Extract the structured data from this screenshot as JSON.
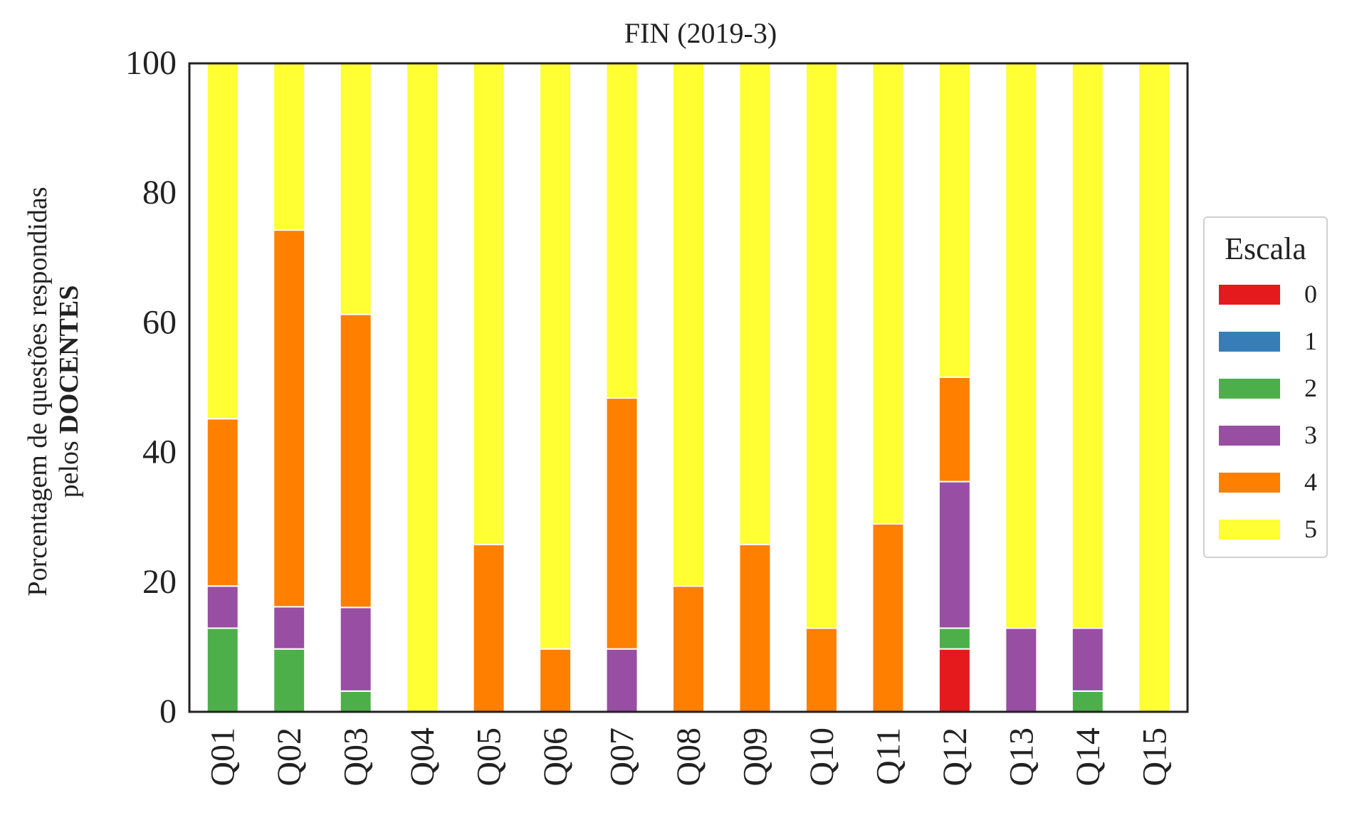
{
  "chart_data": {
    "type": "bar",
    "stacked": true,
    "title": "FIN (2019-3)",
    "ylabel_line1": "Porcentagem de questões respondidas",
    "ylabel_line2_prefix": "pelos ",
    "ylabel_line2_bold": "DOCENTES",
    "xlabel": "",
    "ylim": [
      0,
      100
    ],
    "yticks": [
      "0",
      "20",
      "40",
      "60",
      "80",
      "100"
    ],
    "categories": [
      "Q01",
      "Q02",
      "Q03",
      "Q04",
      "Q05",
      "Q06",
      "Q07",
      "Q08",
      "Q09",
      "Q10",
      "Q11",
      "Q12",
      "Q13",
      "Q14",
      "Q15"
    ],
    "grid": false,
    "legend_title": "Escala",
    "legend_position": "right",
    "series": [
      {
        "name": "0",
        "color": "#e41a1c",
        "values": [
          0,
          0,
          0,
          0,
          0,
          0,
          0,
          0,
          0,
          0,
          0,
          9.7,
          0,
          0,
          0
        ]
      },
      {
        "name": "1",
        "color": "#377eb8",
        "values": [
          0,
          0,
          0,
          0,
          0,
          0,
          0,
          0,
          0,
          0,
          0,
          0,
          0,
          0,
          0
        ]
      },
      {
        "name": "2",
        "color": "#4daf4a",
        "values": [
          12.9,
          9.7,
          3.2,
          0,
          0,
          0,
          0,
          0,
          0,
          0,
          0,
          3.2,
          0,
          3.2,
          0
        ]
      },
      {
        "name": "3",
        "color": "#984ea3",
        "values": [
          6.5,
          6.5,
          12.9,
          0,
          0,
          0,
          9.7,
          0,
          0,
          0,
          0,
          22.6,
          12.9,
          9.7,
          0
        ]
      },
      {
        "name": "4",
        "color": "#ff7f00",
        "values": [
          25.8,
          58.1,
          45.2,
          0,
          25.8,
          9.7,
          38.7,
          19.4,
          25.8,
          12.9,
          29.0,
          16.1,
          0,
          0,
          0
        ]
      },
      {
        "name": "5",
        "color": "#ffff33",
        "values": [
          54.8,
          25.7,
          38.7,
          100,
          74.2,
          90.3,
          51.6,
          80.6,
          74.2,
          87.1,
          71.0,
          48.4,
          87.1,
          87.1,
          100
        ]
      }
    ]
  }
}
